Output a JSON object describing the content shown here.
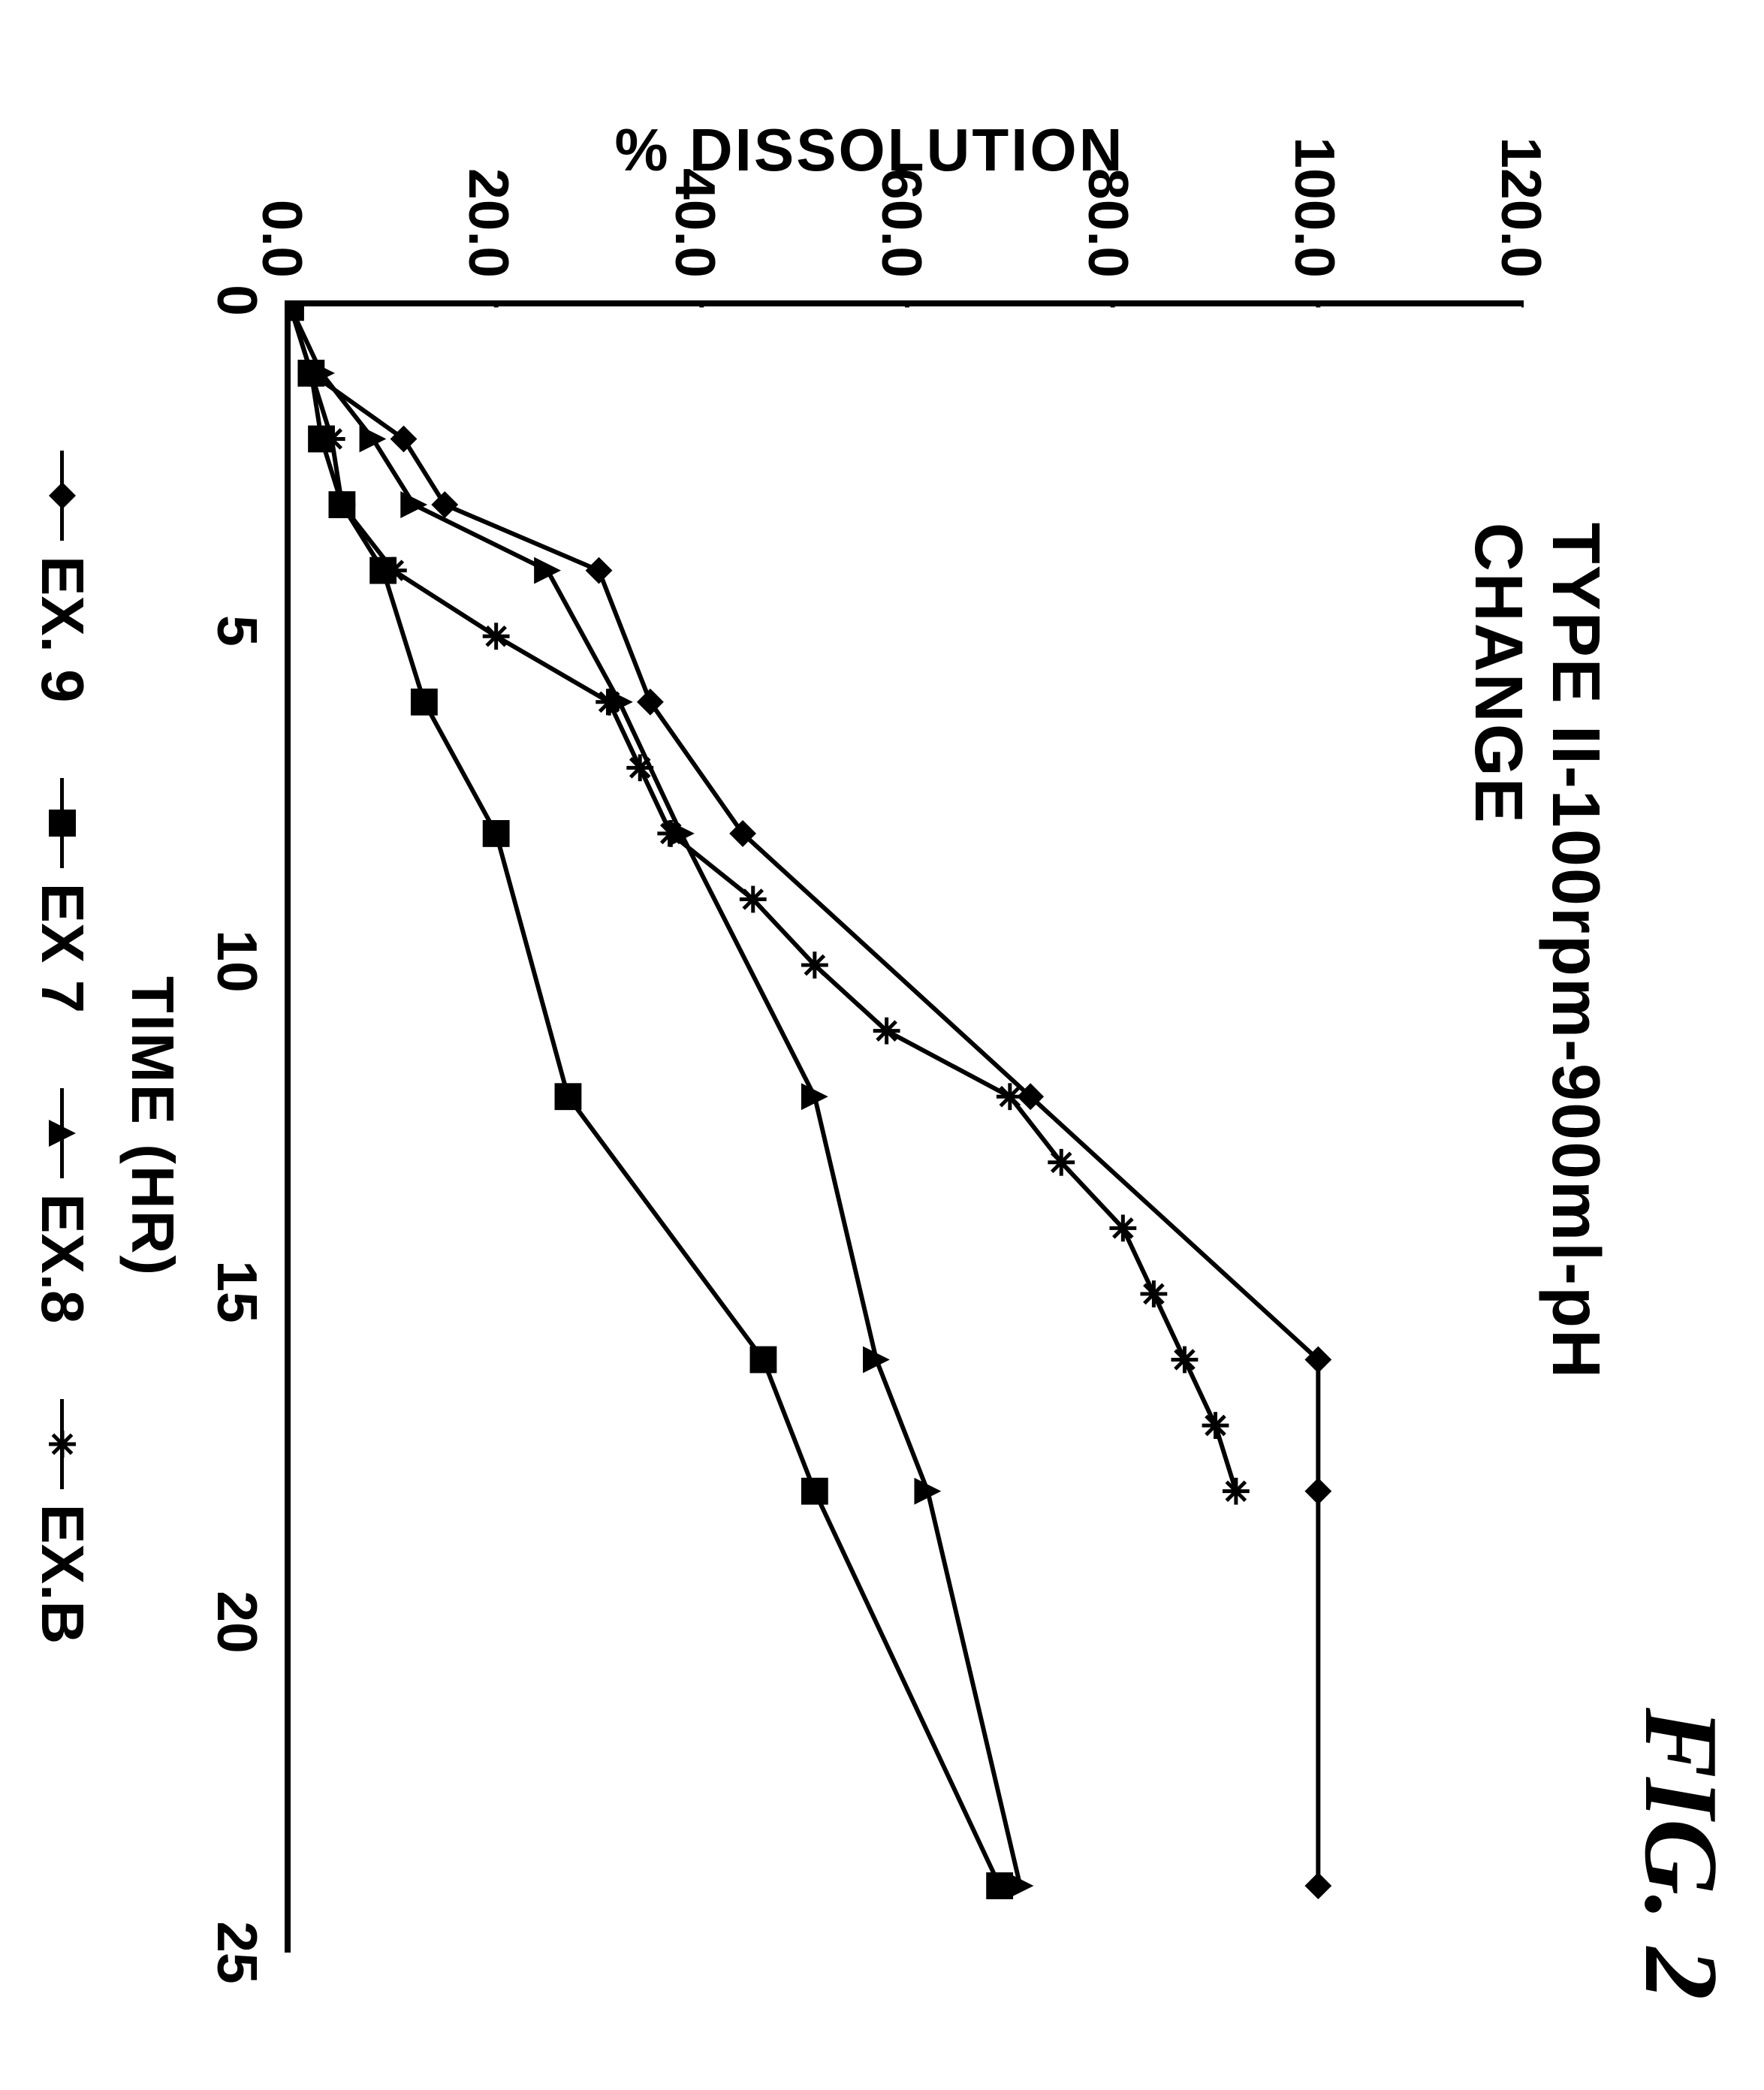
{
  "figure_label": "FIG. 2",
  "chart": {
    "type": "line",
    "title": "TYPE II-100rpm-900ml-pH CHANGE",
    "xlabel": "TIME (HR)",
    "ylabel": "% DISSOLUTION",
    "xlim": [
      0,
      25
    ],
    "ylim": [
      0.0,
      120.0
    ],
    "xtick_step": 5,
    "ytick_step": 20.0,
    "xticks": [
      0,
      5,
      10,
      15,
      20,
      25
    ],
    "yticks": [
      "0.0",
      "20.0",
      "40.0",
      "60.0",
      "80.0",
      "100.0",
      "120.0"
    ],
    "line_width": 6,
    "line_color": "#000000",
    "background_color": "#ffffff",
    "border_color": "#000000",
    "font_family": "Arial",
    "title_fontsize": 90,
    "label_fontsize": 80,
    "tick_fontsize": 75,
    "series": [
      {
        "name": "EX. 9",
        "marker": "diamond",
        "legend_label": "EX. 9",
        "x": [
          0,
          1,
          2,
          3,
          4,
          6,
          8,
          12,
          16,
          18,
          24
        ],
        "y": [
          0,
          2,
          11,
          15,
          30,
          35,
          44,
          72,
          100,
          100,
          100
        ]
      },
      {
        "name": "EX 7",
        "marker": "square",
        "legend_label": "EX 7",
        "x": [
          0,
          1,
          2,
          3,
          4,
          6,
          8,
          12,
          16,
          18,
          24
        ],
        "y": [
          0,
          2,
          3,
          5,
          9,
          13,
          20,
          27,
          46,
          51,
          69
        ]
      },
      {
        "name": "EX.8",
        "marker": "triangle",
        "legend_label": "EX.8",
        "x": [
          0,
          1,
          2,
          3,
          4,
          6,
          8,
          12,
          16,
          18,
          24
        ],
        "y": [
          0,
          3,
          8,
          12,
          25,
          32,
          38,
          51,
          57,
          62,
          71
        ]
      },
      {
        "name": "EX.B",
        "marker": "asterisk",
        "legend_label": "EX.B",
        "x": [
          0,
          1,
          2,
          3,
          4,
          5,
          6,
          7,
          8,
          9,
          10,
          11,
          12,
          13,
          14,
          15,
          16,
          17,
          18
        ],
        "y": [
          0,
          2,
          4,
          5,
          10,
          20,
          31,
          34,
          37,
          45,
          51,
          58,
          70,
          75,
          81,
          84,
          87,
          90,
          92
        ]
      }
    ]
  },
  "legend_items": [
    {
      "marker": "diamond",
      "label": "EX. 9"
    },
    {
      "marker": "square",
      "label": "EX 7"
    },
    {
      "marker": "triangle",
      "label": "EX.8"
    },
    {
      "marker": "asterisk",
      "label": "EX.B"
    }
  ]
}
